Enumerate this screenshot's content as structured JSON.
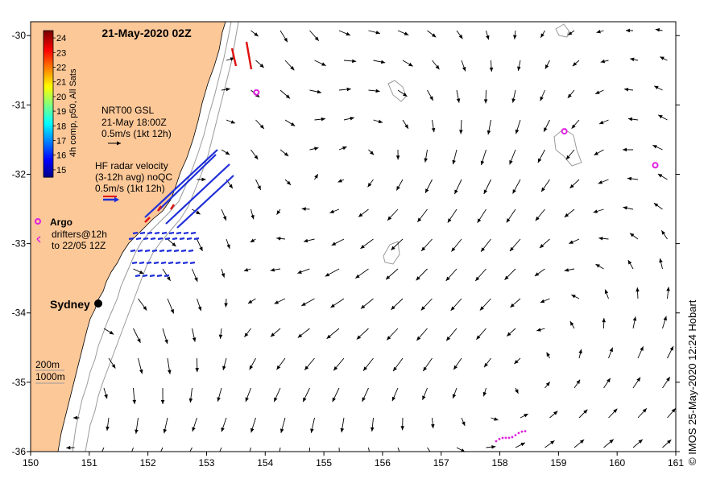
{
  "map": {
    "title": "21-May-2020 02Z",
    "lon_range": [
      150,
      161
    ],
    "lat_range": [
      -36,
      -29.8
    ],
    "lon_ticks": [
      "150",
      "151",
      "152",
      "153",
      "154",
      "155",
      "156",
      "157",
      "158",
      "159",
      "160",
      "161"
    ],
    "lat_ticks": [
      "-30",
      "-31",
      "-32",
      "-33",
      "-34",
      "-35",
      "-36"
    ],
    "colors": {
      "land": "#fdc898",
      "isobath": "#9a9a9a",
      "argo": "#e020e0",
      "radar": "#1f2fd8",
      "radar_red": "#e01010",
      "arrow": "#000000"
    }
  },
  "colorbar": {
    "label": "4h comp, p50, All Sats",
    "ticks": [
      "24",
      "23",
      "22",
      "21",
      "20",
      "19",
      "18",
      "17",
      "16",
      "15"
    ],
    "range_c": [
      14.5,
      24.5
    ]
  },
  "legend": {
    "gsl_line1": "NRT00 GSL",
    "gsl_line2": "21-May 18:00Z",
    "gsl_line3": "0.5m/s (1kt 12h)",
    "hf_line1": "HF radar velocity",
    "hf_line2": "(3-12h avg) noQC",
    "hf_line3": "0.5m/s (1kt 12h)",
    "argo_label": "Argo",
    "drifters_line1": "drifters@12h",
    "drifters_line2": "to 22/05 12Z",
    "isobath_200": "200m",
    "isobath_1000": "1000m"
  },
  "places": {
    "sydney": "Sydney",
    "sydney_lonlat": [
      151.2,
      -33.87
    ]
  },
  "argo_floats": [
    [
      153.85,
      -30.82
    ],
    [
      159.1,
      -31.38
    ],
    [
      160.65,
      -31.87
    ]
  ],
  "credit": "© IMOS 25-May-2020 12:24 Hobart"
}
